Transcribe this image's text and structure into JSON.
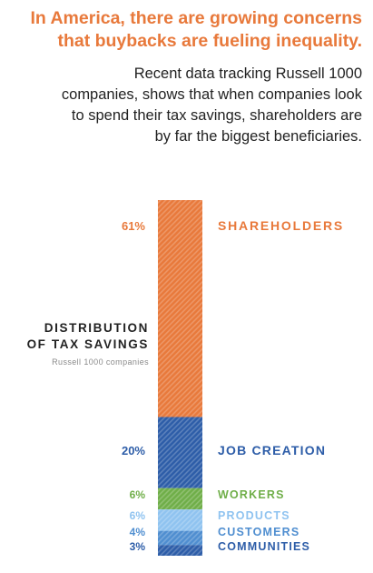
{
  "headline": {
    "lines": [
      "In America, there are growing concerns",
      "that buybacks are fueling inequality."
    ],
    "color": "#E8793B"
  },
  "intro": {
    "lines": [
      "Recent data tracking Russell 1000",
      "companies, shows that when companies look",
      "to spend their tax savings, shareholders are",
      "by far the biggest beneficiaries."
    ]
  },
  "chart_data": {
    "type": "bar",
    "stacked": true,
    "orientation": "vertical",
    "title_lines": [
      "DISTRIBUTION",
      "OF TAX SAVINGS"
    ],
    "subtitle": "Russell 1000 companies",
    "unit": "%",
    "segments": [
      {
        "label": "SHAREHOLDERS",
        "value": 61,
        "color": "#E8793B",
        "label_color": "#E8793B"
      },
      {
        "label": "JOB CREATION",
        "value": 20,
        "color": "#2D5DA8",
        "label_color": "#2D5DA8"
      },
      {
        "label": "WORKERS",
        "value": 6,
        "color": "#6FAE48",
        "label_color": "#6FAE48"
      },
      {
        "label": "PRODUCTS",
        "value": 6,
        "color": "#8FC3F0",
        "label_color": "#8FC3F0"
      },
      {
        "label": "CUSTOMERS",
        "value": 4,
        "color": "#4F8ED0",
        "label_color": "#4F8ED0"
      },
      {
        "label": "COMMUNITIES",
        "value": 3,
        "color": "#2D5DA8",
        "label_color": "#2D5DA8"
      }
    ],
    "caption_color": "#222222",
    "subtitle_color": "#8a8a8a"
  }
}
